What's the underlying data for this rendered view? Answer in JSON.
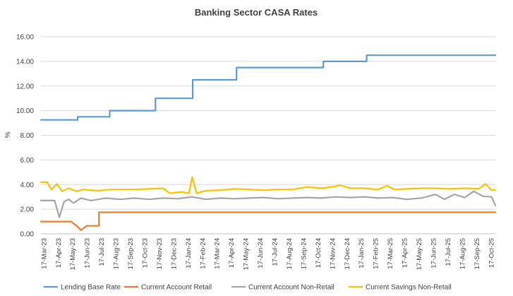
{
  "chart_data": {
    "type": "line",
    "title": "Banking Sector CASA Rates",
    "xlabel": "",
    "ylabel": "%",
    "ylim": [
      0,
      16
    ],
    "yticks": [
      "0.00",
      "2.00",
      "4.00",
      "6.00",
      "8.00",
      "10.00",
      "12.00",
      "14.00",
      "16.00"
    ],
    "grid": true,
    "legend_position": "bottom",
    "x_range": [
      "2023-03-17",
      "2025-11-05"
    ],
    "categories": [
      "17-Mar-23",
      "17-Apr-23",
      "17-May-23",
      "17-Jun-23",
      "17-Jul-23",
      "17-Aug-23",
      "17-Sep-23",
      "17-Oct-23",
      "17-Nov-23",
      "17-Dec-23",
      "17-Jan-24",
      "17-Feb-24",
      "17-Mar-24",
      "17-Apr-24",
      "17-May-24",
      "17-Jun-24",
      "17-Jul-24",
      "17-Aug-24",
      "17-Sep-24",
      "17-Oct-24",
      "17-Nov-24",
      "17-Dec-24",
      "17-Jan-25",
      "17-Feb-25",
      "17-Mar-25",
      "17-Apr-25",
      "17-May-25",
      "17-Jun-25",
      "17-Jul-25",
      "17-Aug-25",
      "17-Sep-25",
      "17-Oct-25"
    ],
    "series": [
      {
        "name": "Lending Base Rate",
        "color": "#5b9bd5",
        "points": [
          [
            "2023-03-17",
            9.25
          ],
          [
            "2023-06-03",
            9.25
          ],
          [
            "2023-06-03",
            9.5
          ],
          [
            "2023-08-10",
            9.5
          ],
          [
            "2023-08-10",
            10.0
          ],
          [
            "2023-11-15",
            10.0
          ],
          [
            "2023-11-15",
            11.0
          ],
          [
            "2024-02-02",
            11.0
          ],
          [
            "2024-02-02",
            12.5
          ],
          [
            "2024-05-05",
            12.5
          ],
          [
            "2024-05-05",
            13.5
          ],
          [
            "2024-11-05",
            13.5
          ],
          [
            "2024-11-05",
            14.0
          ],
          [
            "2025-02-05",
            14.0
          ],
          [
            "2025-02-05",
            14.5
          ],
          [
            "2025-11-05",
            14.5
          ]
        ]
      },
      {
        "name": "Current Account Retail",
        "color": "#ed7d31",
        "points": [
          [
            "2023-03-17",
            1.0
          ],
          [
            "2023-05-20",
            1.0
          ],
          [
            "2023-06-01",
            0.65
          ],
          [
            "2023-06-10",
            0.3
          ],
          [
            "2023-06-22",
            0.65
          ],
          [
            "2023-07-18",
            0.65
          ],
          [
            "2023-07-18",
            1.75
          ],
          [
            "2025-11-05",
            1.75
          ]
        ]
      },
      {
        "name": "Current Account Non-Retail",
        "color": "#a5a5a5",
        "points": [
          [
            "2023-03-17",
            2.7
          ],
          [
            "2023-04-15",
            2.7
          ],
          [
            "2023-04-25",
            1.35
          ],
          [
            "2023-05-05",
            2.6
          ],
          [
            "2023-05-15",
            2.8
          ],
          [
            "2023-05-25",
            2.5
          ],
          [
            "2023-06-10",
            2.9
          ],
          [
            "2023-07-01",
            2.7
          ],
          [
            "2023-08-01",
            2.9
          ],
          [
            "2023-09-01",
            2.8
          ],
          [
            "2023-10-01",
            2.9
          ],
          [
            "2023-11-01",
            2.8
          ],
          [
            "2023-12-01",
            2.9
          ],
          [
            "2024-01-01",
            2.85
          ],
          [
            "2024-02-01",
            3.0
          ],
          [
            "2024-03-01",
            2.8
          ],
          [
            "2024-04-01",
            2.9
          ],
          [
            "2024-05-01",
            2.85
          ],
          [
            "2024-06-01",
            2.9
          ],
          [
            "2024-07-01",
            2.95
          ],
          [
            "2024-08-01",
            2.85
          ],
          [
            "2024-09-01",
            2.9
          ],
          [
            "2024-10-01",
            2.95
          ],
          [
            "2024-11-01",
            2.9
          ],
          [
            "2024-12-01",
            3.0
          ],
          [
            "2025-01-01",
            2.95
          ],
          [
            "2025-02-01",
            3.0
          ],
          [
            "2025-03-01",
            2.9
          ],
          [
            "2025-04-01",
            2.95
          ],
          [
            "2025-05-01",
            2.8
          ],
          [
            "2025-06-01",
            2.9
          ],
          [
            "2025-07-01",
            3.2
          ],
          [
            "2025-07-20",
            2.8
          ],
          [
            "2025-08-10",
            3.2
          ],
          [
            "2025-09-01",
            2.95
          ],
          [
            "2025-09-20",
            3.45
          ],
          [
            "2025-10-10",
            3.05
          ],
          [
            "2025-10-28",
            3.0
          ],
          [
            "2025-11-05",
            2.3
          ]
        ]
      },
      {
        "name": "Current Savings Non-Retail",
        "color": "#ffc000",
        "points": [
          [
            "2023-03-17",
            4.2
          ],
          [
            "2023-03-30",
            4.2
          ],
          [
            "2023-04-08",
            3.6
          ],
          [
            "2023-04-20",
            4.05
          ],
          [
            "2023-05-01",
            3.45
          ],
          [
            "2023-05-15",
            3.7
          ],
          [
            "2023-06-01",
            3.45
          ],
          [
            "2023-06-15",
            3.6
          ],
          [
            "2023-07-15",
            3.5
          ],
          [
            "2023-08-15",
            3.6
          ],
          [
            "2023-10-01",
            3.6
          ],
          [
            "2023-11-01",
            3.65
          ],
          [
            "2023-12-01",
            3.7
          ],
          [
            "2023-12-15",
            3.3
          ],
          [
            "2024-01-10",
            3.4
          ],
          [
            "2024-01-25",
            3.3
          ],
          [
            "2024-02-01",
            4.6
          ],
          [
            "2024-02-10",
            3.3
          ],
          [
            "2024-03-01",
            3.5
          ],
          [
            "2024-04-01",
            3.55
          ],
          [
            "2024-05-01",
            3.65
          ],
          [
            "2024-06-01",
            3.6
          ],
          [
            "2024-07-01",
            3.55
          ],
          [
            "2024-08-01",
            3.6
          ],
          [
            "2024-09-01",
            3.6
          ],
          [
            "2024-10-01",
            3.8
          ],
          [
            "2024-11-01",
            3.7
          ],
          [
            "2024-12-01",
            3.85
          ],
          [
            "2024-12-10",
            3.95
          ],
          [
            "2025-01-01",
            3.7
          ],
          [
            "2025-02-01",
            3.7
          ],
          [
            "2025-03-01",
            3.6
          ],
          [
            "2025-03-20",
            3.9
          ],
          [
            "2025-04-05",
            3.6
          ],
          [
            "2025-05-01",
            3.65
          ],
          [
            "2025-06-01",
            3.7
          ],
          [
            "2025-07-01",
            3.7
          ],
          [
            "2025-08-01",
            3.65
          ],
          [
            "2025-09-01",
            3.7
          ],
          [
            "2025-10-01",
            3.65
          ],
          [
            "2025-10-15",
            4.05
          ],
          [
            "2025-10-28",
            3.55
          ],
          [
            "2025-11-05",
            3.55
          ]
        ]
      }
    ]
  }
}
